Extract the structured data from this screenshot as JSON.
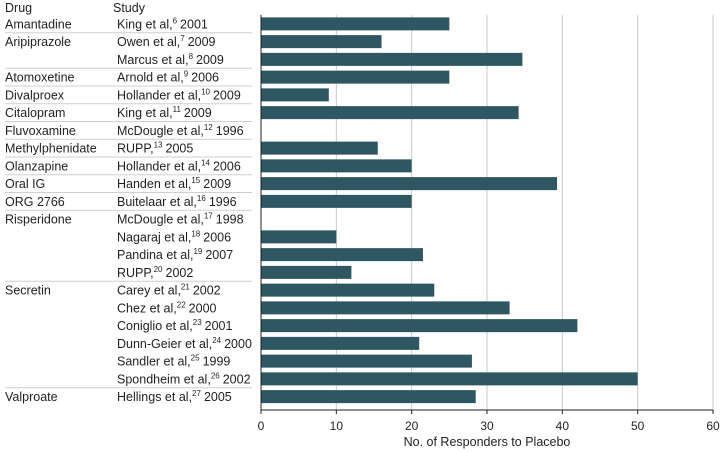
{
  "chart_data": {
    "type": "bar",
    "orientation": "horizontal",
    "headers": {
      "drug": "Drug",
      "study": "Study"
    },
    "xlabel": "No. of Responders to Placebo",
    "xlim": [
      0,
      60
    ],
    "xticks": [
      0,
      10,
      20,
      30,
      40,
      50,
      60
    ],
    "grid": true,
    "bar_color": "#2e5763",
    "rows": [
      {
        "drug": "Amantadine",
        "study": "King et al,",
        "ref": "6",
        "year": "2001",
        "value": 25
      },
      {
        "drug": "Aripiprazole",
        "study": "Owen et al,",
        "ref": "7",
        "year": "2009",
        "value": 16
      },
      {
        "drug": "",
        "study": "Marcus et al,",
        "ref": "8",
        "year": "2009",
        "value": 34.7
      },
      {
        "drug": "Atomoxetine",
        "study": "Arnold et al,",
        "ref": "9",
        "year": "2006",
        "value": 25
      },
      {
        "drug": "Divalproex",
        "study": "Hollander et al,",
        "ref": "10",
        "year": "2009",
        "value": 9
      },
      {
        "drug": "Citalopram",
        "study": "King et al,",
        "ref": "11",
        "year": "2009",
        "value": 34.2
      },
      {
        "drug": "Fluvoxamine",
        "study": "McDougle et al,",
        "ref": "12",
        "year": "1996",
        "value": 0
      },
      {
        "drug": "Methylphenidate",
        "study": "RUPP,",
        "ref": "13",
        "year": "2005",
        "value": 15.5
      },
      {
        "drug": "Olanzapine",
        "study": "Hollander et al,",
        "ref": "14",
        "year": "2006",
        "value": 20
      },
      {
        "drug": "Oral IG",
        "study": "Handen et al,",
        "ref": "15",
        "year": "2009",
        "value": 39.3
      },
      {
        "drug": "ORG 2766",
        "study": "Buitelaar et al,",
        "ref": "16",
        "year": "1996",
        "value": 20
      },
      {
        "drug": "Risperidone",
        "study": "McDougle et al,",
        "ref": "17",
        "year": "1998",
        "value": 0
      },
      {
        "drug": "",
        "study": "Nagaraj et al,",
        "ref": "18",
        "year": "2006",
        "value": 10
      },
      {
        "drug": "",
        "study": "Pandina et al,",
        "ref": "19",
        "year": "2007",
        "value": 21.5
      },
      {
        "drug": "",
        "study": "RUPP,",
        "ref": "20",
        "year": "2002",
        "value": 12
      },
      {
        "drug": "Secretin",
        "study": "Carey et al,",
        "ref": "21",
        "year": "2002",
        "value": 23
      },
      {
        "drug": "",
        "study": "Chez et al,",
        "ref": "22",
        "year": "2000",
        "value": 33
      },
      {
        "drug": "",
        "study": "Coniglio et al,",
        "ref": "23",
        "year": "2001",
        "value": 42
      },
      {
        "drug": "",
        "study": "Dunn-Geier et al,",
        "ref": "24",
        "year": "2000",
        "value": 21
      },
      {
        "drug": "",
        "study": "Sandler et al,",
        "ref": "25",
        "year": "1999",
        "value": 28
      },
      {
        "drug": "",
        "study": "Spondheim et al,",
        "ref": "26",
        "year": "2002",
        "value": 50
      },
      {
        "drug": "Valproate",
        "study": "Hellings et al,",
        "ref": "27",
        "year": "2005",
        "value": 28.5
      }
    ]
  }
}
